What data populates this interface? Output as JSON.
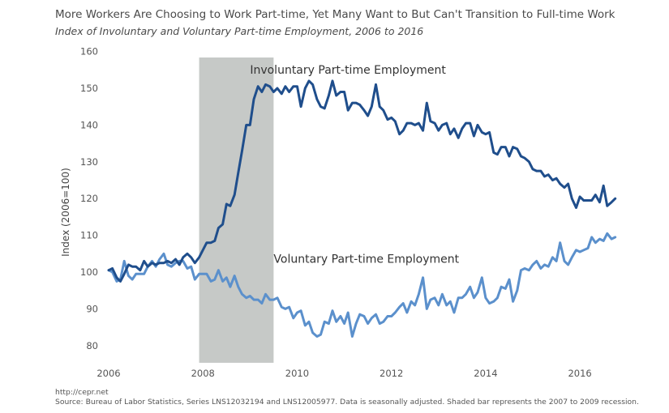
{
  "chart_data": {
    "type": "line",
    "title": "More Workers Are Choosing to Work Part-time, Yet Many Want to But Can't Transition to Full-time Work",
    "subtitle": "Index of Involuntary and Voluntary Part-time Employment, 2006 to 2016",
    "xlabel": "",
    "ylabel": "Index (2006=100)",
    "xlim": [
      2006,
      2016.6
    ],
    "ylim": [
      76,
      161
    ],
    "x_ticks": [
      "2006",
      "2008",
      "2010",
      "2012",
      "2014",
      "2016"
    ],
    "y_ticks": [
      "80",
      "90",
      "100",
      "110",
      "120",
      "130",
      "140",
      "150",
      "160"
    ],
    "grid": false,
    "recession": {
      "start": 2007.92,
      "end": 2009.5,
      "color": "#c6c9c7"
    },
    "series": [
      {
        "name": "Involuntary Part-time Employment",
        "color": "#1f4e8c",
        "points": [
          [
            2006.0,
            100.5
          ],
          [
            2006.08,
            101
          ],
          [
            2006.17,
            98.5
          ],
          [
            2006.25,
            97.5
          ],
          [
            2006.33,
            99.5
          ],
          [
            2006.42,
            102
          ],
          [
            2006.5,
            101.5
          ],
          [
            2006.58,
            101.5
          ],
          [
            2006.67,
            100.5
          ],
          [
            2006.75,
            103
          ],
          [
            2006.83,
            101.5
          ],
          [
            2006.92,
            102.5
          ],
          [
            2007.0,
            102
          ],
          [
            2007.08,
            102.5
          ],
          [
            2007.17,
            102.5
          ],
          [
            2007.25,
            103
          ],
          [
            2007.33,
            102.5
          ],
          [
            2007.42,
            103.5
          ],
          [
            2007.5,
            102
          ],
          [
            2007.58,
            104
          ],
          [
            2007.67,
            105
          ],
          [
            2007.75,
            104
          ],
          [
            2007.83,
            102.5
          ],
          [
            2007.92,
            104
          ],
          [
            2008.0,
            106
          ],
          [
            2008.08,
            108
          ],
          [
            2008.17,
            108
          ],
          [
            2008.25,
            108.5
          ],
          [
            2008.33,
            112
          ],
          [
            2008.42,
            113
          ],
          [
            2008.5,
            118.5
          ],
          [
            2008.58,
            118
          ],
          [
            2008.67,
            121
          ],
          [
            2008.75,
            127
          ],
          [
            2008.83,
            133
          ],
          [
            2008.92,
            140
          ],
          [
            2009.0,
            140
          ],
          [
            2009.08,
            147
          ],
          [
            2009.17,
            150.5
          ],
          [
            2009.25,
            149
          ],
          [
            2009.33,
            151
          ],
          [
            2009.42,
            150.5
          ],
          [
            2009.5,
            149
          ],
          [
            2009.58,
            150
          ],
          [
            2009.67,
            148.5
          ],
          [
            2009.75,
            150.5
          ],
          [
            2009.83,
            149
          ],
          [
            2009.92,
            150.5
          ],
          [
            2010.0,
            150.5
          ],
          [
            2010.08,
            145
          ],
          [
            2010.17,
            150
          ],
          [
            2010.25,
            152
          ],
          [
            2010.33,
            151
          ],
          [
            2010.42,
            147
          ],
          [
            2010.5,
            145
          ],
          [
            2010.58,
            144.5
          ],
          [
            2010.67,
            148
          ],
          [
            2010.75,
            152
          ],
          [
            2010.83,
            148
          ],
          [
            2010.92,
            149
          ],
          [
            2011.0,
            149
          ],
          [
            2011.08,
            144
          ],
          [
            2011.17,
            146
          ],
          [
            2011.25,
            146
          ],
          [
            2011.33,
            145.5
          ],
          [
            2011.42,
            144
          ],
          [
            2011.5,
            142.5
          ],
          [
            2011.58,
            145
          ],
          [
            2011.67,
            151
          ],
          [
            2011.75,
            145
          ],
          [
            2011.83,
            144
          ],
          [
            2011.92,
            141.5
          ],
          [
            2012.0,
            142
          ],
          [
            2012.08,
            141
          ],
          [
            2012.17,
            137.5
          ],
          [
            2012.25,
            138.5
          ],
          [
            2012.33,
            140.5
          ],
          [
            2012.42,
            140.5
          ],
          [
            2012.5,
            140
          ],
          [
            2012.58,
            140.5
          ],
          [
            2012.67,
            138.5
          ],
          [
            2012.75,
            146
          ],
          [
            2012.83,
            141
          ],
          [
            2012.92,
            140.5
          ],
          [
            2013.0,
            138.5
          ],
          [
            2013.08,
            140
          ],
          [
            2013.17,
            140.5
          ],
          [
            2013.25,
            137.5
          ],
          [
            2013.33,
            139
          ],
          [
            2013.42,
            136.5
          ],
          [
            2013.5,
            139
          ],
          [
            2013.58,
            140.5
          ],
          [
            2013.67,
            140.5
          ],
          [
            2013.75,
            137
          ],
          [
            2013.83,
            140
          ],
          [
            2013.92,
            138
          ],
          [
            2014.0,
            137.5
          ],
          [
            2014.08,
            138
          ],
          [
            2014.17,
            132.5
          ],
          [
            2014.25,
            132
          ],
          [
            2014.33,
            134
          ],
          [
            2014.42,
            134
          ],
          [
            2014.5,
            131.5
          ],
          [
            2014.58,
            134
          ],
          [
            2014.67,
            133.5
          ],
          [
            2014.75,
            131.5
          ],
          [
            2014.83,
            131
          ],
          [
            2014.92,
            130
          ],
          [
            2015.0,
            128
          ],
          [
            2015.08,
            127.5
          ],
          [
            2015.17,
            127.5
          ],
          [
            2015.25,
            126
          ],
          [
            2015.33,
            126.5
          ],
          [
            2015.42,
            125
          ],
          [
            2015.5,
            125.5
          ],
          [
            2015.58,
            124
          ],
          [
            2015.67,
            123
          ],
          [
            2015.75,
            124
          ],
          [
            2015.83,
            120
          ],
          [
            2015.92,
            117.5
          ],
          [
            2016.0,
            120.5
          ],
          [
            2016.08,
            119.5
          ],
          [
            2016.17,
            119.5
          ],
          [
            2016.25,
            119.5
          ],
          [
            2016.33,
            121
          ],
          [
            2016.42,
            119
          ],
          [
            2016.5,
            123.5
          ],
          [
            2016.58,
            118
          ],
          [
            2016.67,
            119
          ],
          [
            2016.75,
            120
          ]
        ]
      },
      {
        "name": "Voluntary Part-time Employment",
        "color": "#5b90cc",
        "points": [
          [
            2006.0,
            100.5
          ],
          [
            2006.08,
            100
          ],
          [
            2006.17,
            97.5
          ],
          [
            2006.25,
            98
          ],
          [
            2006.33,
            103
          ],
          [
            2006.42,
            99
          ],
          [
            2006.5,
            98
          ],
          [
            2006.58,
            99.5
          ],
          [
            2006.67,
            99.5
          ],
          [
            2006.75,
            99.5
          ],
          [
            2006.83,
            101.5
          ],
          [
            2006.92,
            103
          ],
          [
            2007.0,
            101.5
          ],
          [
            2007.08,
            103.5
          ],
          [
            2007.17,
            105
          ],
          [
            2007.25,
            102
          ],
          [
            2007.33,
            101.5
          ],
          [
            2007.42,
            102.5
          ],
          [
            2007.5,
            103
          ],
          [
            2007.58,
            103
          ],
          [
            2007.67,
            101
          ],
          [
            2007.75,
            101.5
          ],
          [
            2007.83,
            98
          ],
          [
            2007.92,
            99.5
          ],
          [
            2008.0,
            99.5
          ],
          [
            2008.08,
            99.5
          ],
          [
            2008.17,
            97.5
          ],
          [
            2008.25,
            98
          ],
          [
            2008.33,
            100.5
          ],
          [
            2008.42,
            97.5
          ],
          [
            2008.5,
            98.5
          ],
          [
            2008.58,
            96
          ],
          [
            2008.67,
            99
          ],
          [
            2008.75,
            96
          ],
          [
            2008.83,
            94
          ],
          [
            2008.92,
            93
          ],
          [
            2009.0,
            93.5
          ],
          [
            2009.08,
            92.5
          ],
          [
            2009.17,
            92.5
          ],
          [
            2009.25,
            91.5
          ],
          [
            2009.33,
            94
          ],
          [
            2009.42,
            92.5
          ],
          [
            2009.5,
            92.5
          ],
          [
            2009.58,
            93
          ],
          [
            2009.67,
            90.5
          ],
          [
            2009.75,
            90
          ],
          [
            2009.83,
            90.5
          ],
          [
            2009.92,
            87.5
          ],
          [
            2010.0,
            89
          ],
          [
            2010.08,
            89.5
          ],
          [
            2010.17,
            85.5
          ],
          [
            2010.25,
            86.5
          ],
          [
            2010.33,
            83.5
          ],
          [
            2010.42,
            82.5
          ],
          [
            2010.5,
            83
          ],
          [
            2010.58,
            86.5
          ],
          [
            2010.67,
            86
          ],
          [
            2010.75,
            89.5
          ],
          [
            2010.83,
            86.5
          ],
          [
            2010.92,
            88
          ],
          [
            2011.0,
            86
          ],
          [
            2011.08,
            89
          ],
          [
            2011.17,
            82.5
          ],
          [
            2011.25,
            86
          ],
          [
            2011.33,
            88.5
          ],
          [
            2011.42,
            88
          ],
          [
            2011.5,
            86
          ],
          [
            2011.58,
            87.5
          ],
          [
            2011.67,
            88.5
          ],
          [
            2011.75,
            86
          ],
          [
            2011.83,
            86.5
          ],
          [
            2011.92,
            88
          ],
          [
            2012.0,
            88
          ],
          [
            2012.08,
            89
          ],
          [
            2012.17,
            90.5
          ],
          [
            2012.25,
            91.5
          ],
          [
            2012.33,
            89
          ],
          [
            2012.42,
            92
          ],
          [
            2012.5,
            91
          ],
          [
            2012.58,
            94
          ],
          [
            2012.67,
            98.5
          ],
          [
            2012.75,
            90
          ],
          [
            2012.83,
            92.5
          ],
          [
            2012.92,
            93
          ],
          [
            2013.0,
            91
          ],
          [
            2013.08,
            94
          ],
          [
            2013.17,
            91
          ],
          [
            2013.25,
            92
          ],
          [
            2013.33,
            89
          ],
          [
            2013.42,
            93
          ],
          [
            2013.5,
            93
          ],
          [
            2013.58,
            94
          ],
          [
            2013.67,
            96
          ],
          [
            2013.75,
            93
          ],
          [
            2013.83,
            94.5
          ],
          [
            2013.92,
            98.5
          ],
          [
            2014.0,
            93
          ],
          [
            2014.08,
            91.5
          ],
          [
            2014.17,
            92
          ],
          [
            2014.25,
            93
          ],
          [
            2014.33,
            96
          ],
          [
            2014.42,
            95.5
          ],
          [
            2014.5,
            98
          ],
          [
            2014.58,
            92
          ],
          [
            2014.67,
            95
          ],
          [
            2014.75,
            100.5
          ],
          [
            2014.83,
            101
          ],
          [
            2014.92,
            100.5
          ],
          [
            2015.0,
            102
          ],
          [
            2015.08,
            103
          ],
          [
            2015.17,
            101
          ],
          [
            2015.25,
            102
          ],
          [
            2015.33,
            101.5
          ],
          [
            2015.42,
            104
          ],
          [
            2015.5,
            103
          ],
          [
            2015.58,
            108
          ],
          [
            2015.67,
            103
          ],
          [
            2015.75,
            102
          ],
          [
            2015.83,
            104
          ],
          [
            2015.92,
            106
          ],
          [
            2016.0,
            105.5
          ],
          [
            2016.08,
            106
          ],
          [
            2016.17,
            106.5
          ],
          [
            2016.25,
            109.5
          ],
          [
            2016.33,
            108
          ],
          [
            2016.42,
            109
          ],
          [
            2016.5,
            108.5
          ],
          [
            2016.58,
            110.5
          ],
          [
            2016.67,
            109
          ],
          [
            2016.75,
            109.5
          ]
        ]
      }
    ],
    "annotations": [
      {
        "text": "Involuntary Part-time Employment",
        "x": 2009.0,
        "y": 154
      },
      {
        "text": "Voluntary Part-time Employment",
        "x": 2009.5,
        "y": 102.5
      }
    ],
    "source_url": "http://cepr.net",
    "source": "Source: Bureau of Labor Statistics, Series LNS12032194 and LNS12005977. Data is seasonally adjusted. Shaded bar represents the 2007 to 2009 recession."
  }
}
